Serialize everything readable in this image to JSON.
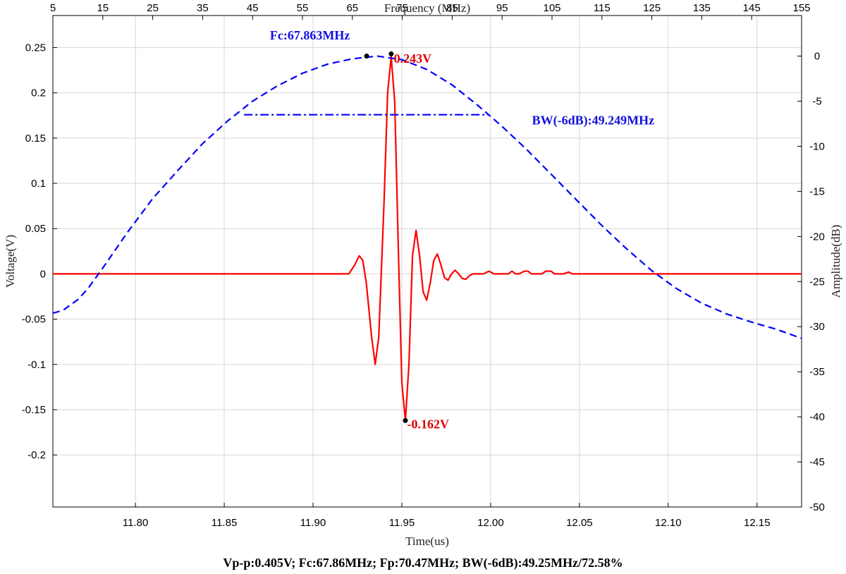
{
  "chart_data": {
    "type": "line",
    "x_bottom": {
      "label": "Time(us)",
      "range": [
        11.7535,
        12.1751
      ],
      "ticks": [
        11.8,
        11.85,
        11.9,
        11.95,
        12.0,
        12.05,
        12.1,
        12.15
      ],
      "tick_labels": [
        "11.80",
        "11.85",
        "11.90",
        "11.95",
        "12.00",
        "12.05",
        "12.10",
        "12.15"
      ]
    },
    "x_top": {
      "label": "Frequency (MHz)",
      "range": [
        5,
        155
      ],
      "ticks": [
        5,
        15,
        25,
        35,
        45,
        55,
        65,
        75,
        85,
        95,
        105,
        115,
        125,
        135,
        145,
        155
      ]
    },
    "y_left": {
      "label": "Voltage(V)",
      "range": [
        -0.2575,
        0.2854
      ],
      "ticks": [
        -0.2,
        -0.15,
        -0.1,
        -0.05,
        0,
        0.05,
        0.1,
        0.15,
        0.2,
        0.25
      ],
      "tick_labels": [
        "-0.2",
        "-0.15",
        "-0.1",
        "-0.05",
        "0",
        "0.05",
        "0.1",
        "0.15",
        "0.2",
        "0.25"
      ]
    },
    "y_right": {
      "label": "Amplitude(dB)",
      "range": [
        -50,
        4.5
      ],
      "ticks": [
        -50,
        -45,
        -40,
        -35,
        -30,
        -25,
        -20,
        -15,
        -10,
        -5,
        0
      ]
    },
    "grid": true,
    "series": [
      {
        "axes": "bottom-left",
        "style": "solid",
        "color": "#ff0000",
        "points": [
          [
            11.7535,
            0
          ],
          [
            11.92,
            0
          ],
          [
            11.9205,
            0.001
          ],
          [
            11.9235,
            0.01
          ],
          [
            11.926,
            0.02
          ],
          [
            11.928,
            0.015
          ],
          [
            11.93,
            -0.01
          ],
          [
            11.933,
            -0.07
          ],
          [
            11.935,
            -0.1
          ],
          [
            11.937,
            -0.07
          ],
          [
            11.94,
            0.08
          ],
          [
            11.942,
            0.2
          ],
          [
            11.944,
            0.24
          ],
          [
            11.946,
            0.19
          ],
          [
            11.948,
            0.03
          ],
          [
            11.95,
            -0.12
          ],
          [
            11.952,
            -0.162
          ],
          [
            11.954,
            -0.1
          ],
          [
            11.956,
            0.02
          ],
          [
            11.958,
            0.048
          ],
          [
            11.96,
            0.02
          ],
          [
            11.962,
            -0.02
          ],
          [
            11.964,
            -0.029
          ],
          [
            11.966,
            -0.01
          ],
          [
            11.968,
            0.015
          ],
          [
            11.97,
            0.022
          ],
          [
            11.972,
            0.01
          ],
          [
            11.974,
            -0.004
          ],
          [
            11.976,
            -0.007
          ],
          [
            11.978,
            0
          ],
          [
            11.98,
            0.004
          ],
          [
            11.982,
            0
          ],
          [
            11.984,
            -0.005
          ],
          [
            11.986,
            -0.006
          ],
          [
            11.988,
            -0.002
          ],
          [
            11.99,
            0
          ],
          [
            11.996,
            0
          ],
          [
            11.999,
            0.003
          ],
          [
            12.002,
            0
          ],
          [
            12.004,
            0
          ],
          [
            12.01,
            0
          ],
          [
            12.012,
            0.003
          ],
          [
            12.014,
            0
          ],
          [
            12.016,
            0
          ],
          [
            12.019,
            0.003
          ],
          [
            12.021,
            0.003
          ],
          [
            12.023,
            0
          ],
          [
            12.029,
            0
          ],
          [
            12.031,
            0.003
          ],
          [
            12.034,
            0.003
          ],
          [
            12.036,
            0
          ],
          [
            12.041,
            0
          ],
          [
            12.044,
            0.002
          ],
          [
            12.046,
            0
          ],
          [
            12.1751,
            0
          ]
        ]
      },
      {
        "axes": "top-right",
        "style": "dashed",
        "color": "#0000ff",
        "points": [
          [
            5,
            -28.5
          ],
          [
            7,
            -28.2
          ],
          [
            10,
            -27
          ],
          [
            12,
            -25.8
          ],
          [
            15,
            -23.5
          ],
          [
            20,
            -19.5
          ],
          [
            25,
            -15.8
          ],
          [
            30,
            -12.7
          ],
          [
            35,
            -9.7
          ],
          [
            40,
            -7.2
          ],
          [
            45,
            -5
          ],
          [
            50,
            -3.3
          ],
          [
            55,
            -1.9
          ],
          [
            60,
            -0.9
          ],
          [
            65,
            -0.3
          ],
          [
            70,
            0
          ],
          [
            75,
            -0.4
          ],
          [
            80,
            -1.5
          ],
          [
            85,
            -3.2
          ],
          [
            90,
            -5.4
          ],
          [
            95,
            -7.8
          ],
          [
            100,
            -10.4
          ],
          [
            105,
            -13.2
          ],
          [
            110,
            -16
          ],
          [
            115,
            -18.8
          ],
          [
            120,
            -21.4
          ],
          [
            125,
            -23.8
          ],
          [
            130,
            -25.8
          ],
          [
            135,
            -27.4
          ],
          [
            140,
            -28.6
          ],
          [
            145,
            -29.5
          ],
          [
            150,
            -30.3
          ],
          [
            155,
            -31.3
          ]
        ]
      },
      {
        "axes": "top-right",
        "style": "dashdot",
        "color": "#0000ff",
        "points": [
          [
            43.3,
            -6.5
          ],
          [
            92.5,
            -6.5
          ]
        ]
      }
    ],
    "markers": [
      {
        "axes": "bottom-left",
        "x": 11.944,
        "y": 0.243
      },
      {
        "axes": "bottom-left",
        "x": 11.952,
        "y": -0.162
      },
      {
        "axes": "top-right",
        "x": 67.863,
        "y": 0
      }
    ],
    "annotations": [
      {
        "text": "0.243V",
        "color": "red",
        "axes": "bottom-left",
        "x": 11.9455,
        "y": 0.238,
        "anchor": "start"
      },
      {
        "text": "-0.162V",
        "color": "red",
        "axes": "bottom-left",
        "x": 11.953,
        "y": -0.166,
        "anchor": "start"
      },
      {
        "text": "Fc:67.863MHz",
        "color": "blue",
        "axes": "top-right",
        "x": 56.5,
        "y": 2.3,
        "anchor": "middle"
      },
      {
        "text": "BW(-6dB):49.249MHz",
        "color": "blue",
        "axes": "top-right",
        "x": 101,
        "y": -7.1,
        "anchor": "start"
      }
    ],
    "summary": "Vp-p:0.405V;  Fc:67.86MHz;  Fp:70.47MHz;  BW(-6dB):49.25MHz/72.58%"
  }
}
